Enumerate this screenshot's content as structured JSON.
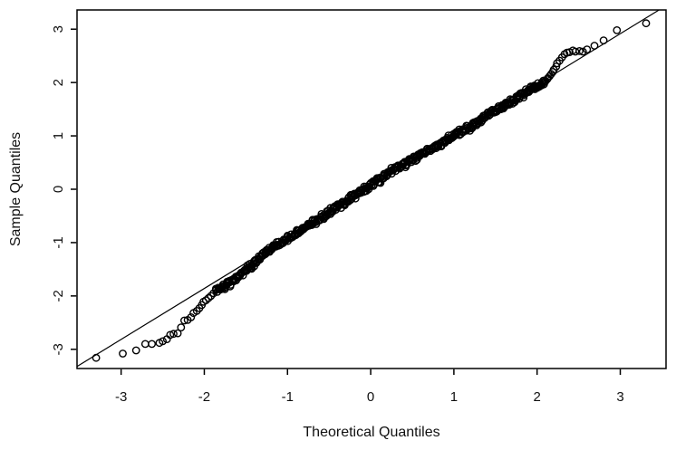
{
  "colors": {
    "foreground": "#000000",
    "background": "#ffffff",
    "tick_text": "#111111"
  },
  "chart_data": {
    "type": "scatter",
    "subtype": "normal-qq-plot",
    "title": "",
    "xlabel": "Theoretical Quantiles",
    "ylabel": "Sample Quantiles",
    "xlim": [
      -3.53,
      3.55
    ],
    "ylim": [
      -3.36,
      3.36
    ],
    "x_ticks": [
      -3,
      -2,
      -1,
      0,
      1,
      2,
      3
    ],
    "y_ticks": [
      -3,
      -2,
      -1,
      0,
      1,
      2,
      3
    ],
    "grid": false,
    "legend": false,
    "marker": "open-circle",
    "marker_radius_px": 3.7,
    "marker_stroke_px": 1.4,
    "reference_line": {
      "slope": 0.955,
      "intercept": 0.05
    },
    "lower_tail_points": [
      [
        -3.3,
        -3.16
      ],
      [
        -2.98,
        -3.08
      ],
      [
        -2.82,
        -3.02
      ],
      [
        -2.71,
        -2.9
      ],
      [
        -2.63,
        -2.9
      ],
      [
        -2.54,
        -2.88
      ],
      [
        -2.5,
        -2.85
      ],
      [
        -2.45,
        -2.81
      ],
      [
        -2.41,
        -2.73
      ],
      [
        -2.37,
        -2.71
      ],
      [
        -2.32,
        -2.7
      ],
      [
        -2.28,
        -2.59
      ],
      [
        -2.24,
        -2.46
      ],
      [
        -2.2,
        -2.45
      ],
      [
        -2.16,
        -2.4
      ],
      [
        -2.13,
        -2.32
      ],
      [
        -2.09,
        -2.28
      ],
      [
        -2.06,
        -2.23
      ],
      [
        -2.03,
        -2.17
      ],
      [
        -2.01,
        -2.11
      ],
      [
        -1.98,
        -2.08
      ],
      [
        -1.95,
        -2.04
      ],
      [
        -1.92,
        -2.0
      ],
      [
        -1.89,
        -1.95
      ]
    ],
    "upper_tail_points": [
      [
        2.08,
        2.0
      ],
      [
        2.1,
        2.03
      ],
      [
        2.12,
        2.06
      ],
      [
        2.13,
        2.08
      ],
      [
        2.15,
        2.12
      ],
      [
        2.17,
        2.16
      ],
      [
        2.19,
        2.2
      ],
      [
        2.2,
        2.24
      ],
      [
        2.23,
        2.3
      ],
      [
        2.24,
        2.36
      ],
      [
        2.27,
        2.41
      ],
      [
        2.3,
        2.47
      ],
      [
        2.33,
        2.53
      ],
      [
        2.36,
        2.56
      ],
      [
        2.39,
        2.57
      ],
      [
        2.43,
        2.6
      ],
      [
        2.46,
        2.58
      ],
      [
        2.51,
        2.59
      ],
      [
        2.55,
        2.58
      ],
      [
        2.6,
        2.62
      ],
      [
        2.69,
        2.69
      ],
      [
        2.8,
        2.79
      ],
      [
        2.96,
        2.98
      ],
      [
        3.31,
        3.11
      ]
    ],
    "dense_band": {
      "x_start": -1.86,
      "x_end": 2.1,
      "anchors": [
        [
          -1.86,
          -1.9
        ],
        [
          -1.77,
          -1.83
        ],
        [
          -1.68,
          -1.76
        ],
        [
          -1.59,
          -1.63
        ],
        [
          -1.47,
          -1.47
        ],
        [
          -1.35,
          -1.32
        ],
        [
          -1.25,
          -1.16
        ],
        [
          -1.1,
          -1.02
        ],
        [
          -0.95,
          -0.88
        ],
        [
          -0.8,
          -0.71
        ],
        [
          -0.65,
          -0.58
        ],
        [
          -0.5,
          -0.44
        ],
        [
          -0.35,
          -0.28
        ],
        [
          -0.2,
          -0.12
        ],
        [
          -0.05,
          0.02
        ],
        [
          0.1,
          0.17
        ],
        [
          0.25,
          0.33
        ],
        [
          0.4,
          0.46
        ],
        [
          0.55,
          0.58
        ],
        [
          0.7,
          0.74
        ],
        [
          0.85,
          0.86
        ],
        [
          1.0,
          1.0
        ],
        [
          1.15,
          1.13
        ],
        [
          1.3,
          1.27
        ],
        [
          1.45,
          1.43
        ],
        [
          1.6,
          1.55
        ],
        [
          1.72,
          1.68
        ],
        [
          1.85,
          1.8
        ],
        [
          1.95,
          1.89
        ],
        [
          2.03,
          1.96
        ],
        [
          2.1,
          2.02
        ]
      ],
      "layers": [
        {
          "step": 0.016,
          "jitter": 0.042
        },
        {
          "step": 0.027,
          "jitter": 0.062
        },
        {
          "step": 0.043,
          "jitter": 0.075
        }
      ]
    }
  }
}
